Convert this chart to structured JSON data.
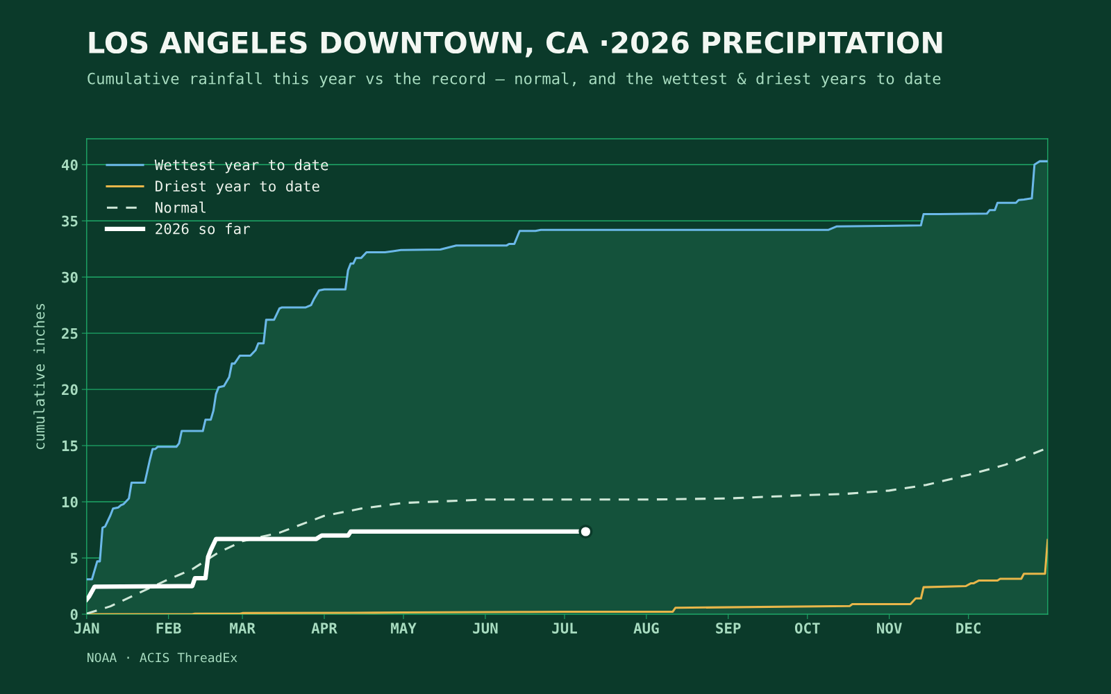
{
  "chart_data": {
    "type": "line",
    "title": "LOS ANGELES DOWNTOWN, CA ·2026 PRECIPITATION",
    "subtitle": "Cumulative rainfall this year vs the record — normal, and the wettest & driest years to date",
    "ylabel": "cumulative inches",
    "annotations": [
      "NOAA · ACIS ThreadEx"
    ],
    "xlim": [
      "2026-01-01",
      "2026-12-31"
    ],
    "xticks": [
      {
        "value": "2026-01-01",
        "label": "JAN"
      },
      {
        "value": "2026-02-01",
        "label": "FEB"
      },
      {
        "value": "2026-03-01",
        "label": "MAR"
      },
      {
        "value": "2026-04-01",
        "label": "APR"
      },
      {
        "value": "2026-05-01",
        "label": "MAY"
      },
      {
        "value": "2026-06-01",
        "label": "JUN"
      },
      {
        "value": "2026-07-01",
        "label": "JUL"
      },
      {
        "value": "2026-08-01",
        "label": "AUG"
      },
      {
        "value": "2026-09-01",
        "label": "SEP"
      },
      {
        "value": "2026-10-01",
        "label": "OCT"
      },
      {
        "value": "2026-11-01",
        "label": "NOV"
      },
      {
        "value": "2026-12-01",
        "label": "DEC"
      }
    ],
    "ylim": [
      0,
      42.3
    ],
    "yticks": [
      0,
      5,
      10,
      15,
      20,
      25,
      30,
      35,
      40
    ],
    "grid": "y",
    "legend": "top left",
    "series": [
      {
        "name": "Wettest year to date",
        "type": "area",
        "color": "#6bb8e8",
        "line_style": "solid",
        "x": [
          "2026-01-01",
          "2026-01-03",
          "2026-01-05",
          "2026-01-06",
          "2026-01-07",
          "2026-01-08",
          "2026-01-10",
          "2026-01-11",
          "2026-01-13",
          "2026-01-14",
          "2026-01-15",
          "2026-01-17",
          "2026-01-18",
          "2026-01-23",
          "2026-01-25",
          "2026-01-26",
          "2026-01-27",
          "2026-01-28",
          "2026-02-04",
          "2026-02-05",
          "2026-02-06",
          "2026-02-14",
          "2026-02-15",
          "2026-02-17",
          "2026-02-18",
          "2026-02-19",
          "2026-02-20",
          "2026-02-22",
          "2026-02-24",
          "2026-02-25",
          "2026-02-26",
          "2026-02-28",
          "2026-03-04",
          "2026-03-06",
          "2026-03-07",
          "2026-03-09",
          "2026-03-10",
          "2026-03-13",
          "2026-03-15",
          "2026-03-16",
          "2026-03-25",
          "2026-03-27",
          "2026-03-28",
          "2026-03-30",
          "2026-04-01",
          "2026-04-09",
          "2026-04-10",
          "2026-04-11",
          "2026-04-12",
          "2026-04-13",
          "2026-04-15",
          "2026-04-17",
          "2026-04-24",
          "2026-04-27",
          "2026-04-30",
          "2026-05-15",
          "2026-05-21",
          "2026-06-09",
          "2026-06-10",
          "2026-06-12",
          "2026-06-14",
          "2026-06-20",
          "2026-06-22",
          "2026-10-09",
          "2026-10-12",
          "2026-10-30",
          "2026-11-13",
          "2026-11-14",
          "2026-11-20",
          "2026-12-08",
          "2026-12-09",
          "2026-12-11",
          "2026-12-12",
          "2026-12-19",
          "2026-12-20",
          "2026-12-22",
          "2026-12-25",
          "2026-12-26",
          "2026-12-27",
          "2026-12-28",
          "2026-12-31"
        ],
        "values": [
          3.1,
          3.1,
          4.7,
          4.7,
          7.7,
          7.8,
          8.8,
          9.4,
          9.5,
          9.7,
          9.8,
          10.3,
          11.7,
          11.7,
          13.8,
          14.7,
          14.7,
          14.9,
          14.9,
          15.2,
          16.3,
          16.3,
          17.3,
          17.3,
          18.1,
          19.6,
          20.2,
          20.3,
          21.1,
          22.3,
          22.3,
          23.0,
          23.0,
          23.5,
          24.1,
          24.1,
          26.2,
          26.2,
          27.2,
          27.3,
          27.3,
          27.5,
          28.0,
          28.8,
          28.9,
          28.9,
          30.6,
          31.2,
          31.2,
          31.7,
          31.7,
          32.2,
          32.2,
          32.3,
          32.4,
          32.45,
          32.8,
          32.8,
          32.95,
          32.95,
          34.1,
          34.1,
          34.2,
          34.2,
          34.5,
          34.55,
          34.6,
          35.6,
          35.6,
          35.65,
          35.95,
          35.95,
          36.6,
          36.6,
          36.85,
          36.9,
          37.0,
          40.0,
          40.15,
          40.3,
          40.3
        ]
      },
      {
        "name": "Driest year to date",
        "color": "#e8b64a",
        "line_style": "solid",
        "x": [
          "2026-01-01",
          "2026-02-10",
          "2026-02-11",
          "2026-02-28",
          "2026-03-01",
          "2026-04-20",
          "2026-05-01",
          "2026-06-15",
          "2026-07-01",
          "2026-08-11",
          "2026-08-12",
          "2026-10-17",
          "2026-10-18",
          "2026-11-09",
          "2026-11-11",
          "2026-11-13",
          "2026-11-14",
          "2026-11-30",
          "2026-12-02",
          "2026-12-03",
          "2026-12-05",
          "2026-12-12",
          "2026-12-13",
          "2026-12-21",
          "2026-12-22",
          "2026-12-30",
          "2026-12-31"
        ],
        "values": [
          0,
          0,
          0.05,
          0.05,
          0.1,
          0.13,
          0.15,
          0.2,
          0.22,
          0.22,
          0.57,
          0.72,
          0.9,
          0.9,
          1.4,
          1.4,
          2.4,
          2.5,
          2.75,
          2.75,
          3.0,
          3.0,
          3.15,
          3.15,
          3.6,
          3.6,
          6.6
        ]
      },
      {
        "name": "Normal",
        "color": "#cfe8d8",
        "line_style": "dashed",
        "x": [
          "2026-01-01",
          "2026-01-10",
          "2026-01-20",
          "2026-02-01",
          "2026-02-10",
          "2026-02-20",
          "2026-03-01",
          "2026-03-15",
          "2026-04-01",
          "2026-04-15",
          "2026-05-01",
          "2026-06-01",
          "2026-07-01",
          "2026-08-01",
          "2026-09-01",
          "2026-10-01",
          "2026-10-15",
          "2026-11-01",
          "2026-11-15",
          "2026-12-01",
          "2026-12-15",
          "2026-12-31"
        ],
        "values": [
          0.05,
          0.7,
          1.8,
          3.1,
          4.0,
          5.5,
          6.5,
          7.25,
          8.75,
          9.4,
          9.9,
          10.2,
          10.2,
          10.2,
          10.3,
          10.6,
          10.7,
          11.0,
          11.5,
          12.4,
          13.3,
          14.8
        ]
      },
      {
        "name": "2026 so far",
        "color": "#ffffff",
        "line_style": "solid",
        "x": [
          "2026-01-01",
          "2026-01-02",
          "2026-01-04",
          "2026-02-10",
          "2026-02-11",
          "2026-02-15",
          "2026-02-16",
          "2026-02-17",
          "2026-02-19",
          "2026-03-29",
          "2026-03-31",
          "2026-04-10",
          "2026-04-11",
          "2026-07-09"
        ],
        "values": [
          1.3,
          1.6,
          2.45,
          2.5,
          3.2,
          3.2,
          5.1,
          5.7,
          6.7,
          6.7,
          7.0,
          7.0,
          7.35,
          7.35
        ]
      },
      {
        "type": "scatter",
        "color": "#ffffff",
        "marker": "circle",
        "x": [
          "2026-07-09"
        ],
        "values": [
          7.35
        ]
      }
    ]
  }
}
